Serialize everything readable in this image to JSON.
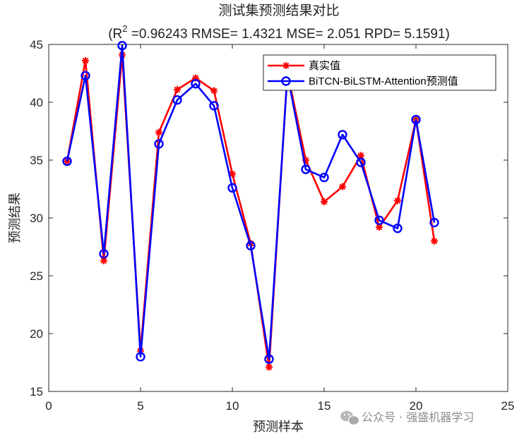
{
  "chart_data": {
    "type": "line",
    "title": "测试集预测结果对比",
    "subtitle": {
      "prefix": "(R",
      "sup": "2",
      "rest": " =0.96243 RMSE= 1.4321 MSE= 2.051 RPD= 5.1591)"
    },
    "xlabel": "预测样本",
    "ylabel": "预测结果",
    "xlim": [
      0,
      25
    ],
    "ylim": [
      15,
      45
    ],
    "xticks": [
      0,
      5,
      10,
      15,
      20,
      25
    ],
    "yticks": [
      15,
      20,
      25,
      30,
      35,
      40,
      45
    ],
    "grid": false,
    "legend_position": "top-right",
    "x": [
      1,
      2,
      3,
      4,
      5,
      6,
      7,
      8,
      9,
      10,
      11,
      12,
      13,
      14,
      15,
      16,
      17,
      18,
      19,
      20,
      21
    ],
    "series": [
      {
        "name": "真实值",
        "color": "#ff0000",
        "marker": "asterisk",
        "values": [
          34.9,
          43.6,
          26.3,
          44.1,
          18.5,
          37.4,
          41.1,
          42.1,
          41.0,
          33.8,
          27.8,
          17.1,
          42.6,
          35.0,
          31.4,
          32.7,
          35.4,
          29.2,
          31.5,
          38.5,
          28.0
        ]
      },
      {
        "name": "BiTCN-BiLSTM-Attention预测值",
        "color": "#0000ff",
        "marker": "circle",
        "values": [
          34.9,
          42.3,
          26.9,
          44.9,
          18.0,
          36.4,
          40.2,
          41.6,
          39.7,
          32.6,
          27.6,
          17.8,
          42.4,
          34.2,
          33.5,
          37.2,
          34.8,
          29.8,
          29.1,
          38.5,
          29.6
        ]
      }
    ]
  },
  "watermark": {
    "text": "公众号 · 强盛机器学习",
    "icon": "wechat-logo-icon"
  }
}
